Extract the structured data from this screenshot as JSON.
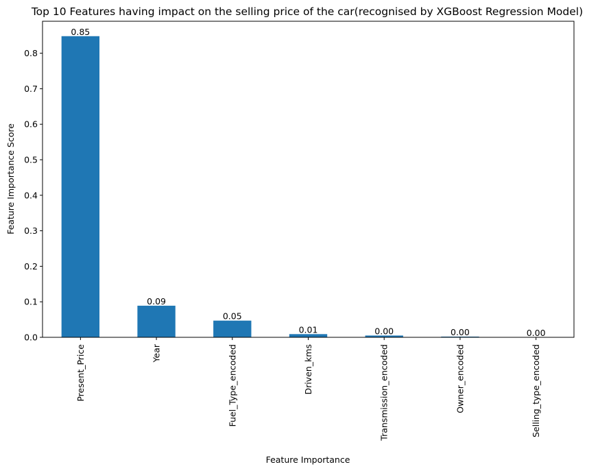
{
  "chart_data": {
    "type": "bar",
    "title": "Top 10 Features having impact on the selling price of the car(recognised by XGBoost Regression Model)",
    "xlabel": "Feature Importance",
    "ylabel": "Feature Importance Score",
    "categories": [
      "Present_Price",
      "Year",
      "Fuel_Type_encoded",
      "Driven_kms",
      "Transmission_encoded",
      "Owner_encoded",
      "Selling_type_encoded"
    ],
    "values": [
      0.848,
      0.089,
      0.047,
      0.009,
      0.005,
      0.002,
      0.0004
    ],
    "data_labels": [
      "0.85",
      "0.09",
      "0.05",
      "0.01",
      "0.00",
      "0.00",
      "0.00"
    ],
    "yticks": [
      "0.0",
      "0.1",
      "0.2",
      "0.3",
      "0.4",
      "0.5",
      "0.6",
      "0.7",
      "0.8"
    ],
    "ylim": [
      0,
      0.89
    ],
    "grid": false,
    "bar_color": "#1f77b4"
  }
}
